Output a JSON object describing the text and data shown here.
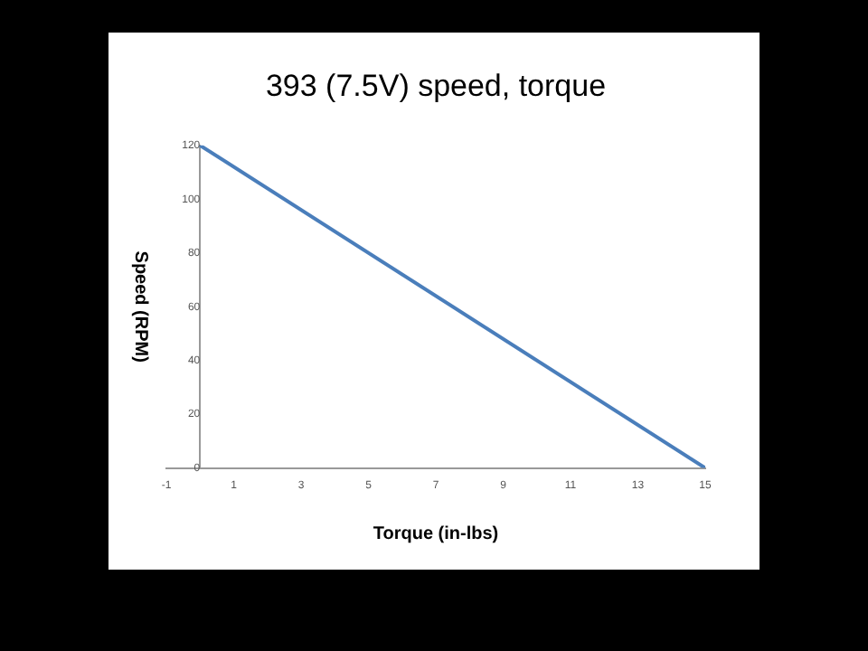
{
  "chart_data": {
    "type": "line",
    "title": "393 (7.5V) speed, torque",
    "xlabel": "Torque (in-lbs)",
    "ylabel": "Speed (RPM)",
    "x": [
      0,
      15
    ],
    "values": [
      120,
      0
    ],
    "color": "#4a7ebb",
    "xlim": [
      -1,
      15
    ],
    "xticks": [
      -1,
      1,
      3,
      5,
      7,
      9,
      11,
      13,
      15
    ],
    "ylim": [
      0,
      120
    ],
    "yticks": [
      0,
      20,
      40,
      60,
      80,
      100,
      120
    ],
    "grid": false,
    "legend": false,
    "marker": "none"
  }
}
